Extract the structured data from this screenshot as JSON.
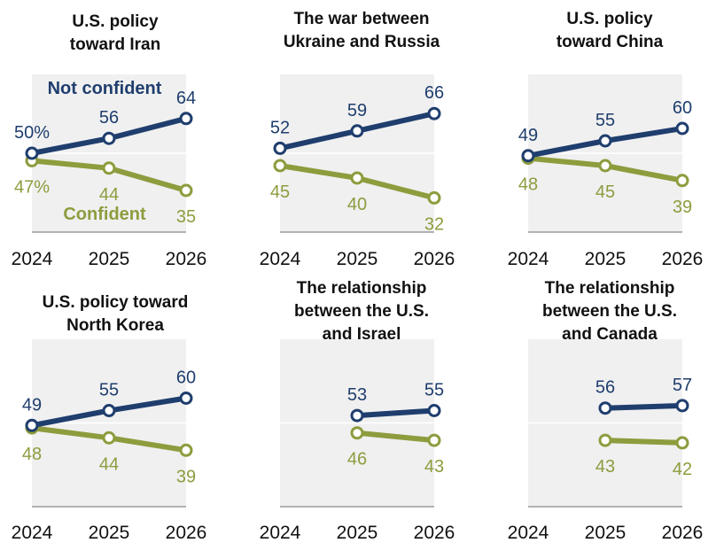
{
  "colors": {
    "not_confident": "#1f3e6e",
    "confident": "#8e9c3e",
    "panel_bg": "#f0f0f0",
    "gridline": "#ffffff"
  },
  "legend": {
    "not_confident": "Not confident",
    "confident": "Confident"
  },
  "chart_data": [
    {
      "type": "line",
      "title_lines": [
        "U.S. policy",
        "toward Iran"
      ],
      "x": [
        "2024",
        "2025",
        "2026"
      ],
      "ylim": [
        0,
        100
      ],
      "series": [
        {
          "name": "Not confident",
          "values": [
            50,
            56,
            64
          ],
          "labels": [
            "50%",
            "56",
            "64"
          ]
        },
        {
          "name": "Confident",
          "values": [
            47,
            44,
            35
          ],
          "labels": [
            "47%",
            "44",
            "35"
          ]
        }
      ]
    },
    {
      "type": "line",
      "title_lines": [
        "The war between",
        "Ukraine and Russia"
      ],
      "x": [
        "2024",
        "2025",
        "2026"
      ],
      "ylim": [
        0,
        100
      ],
      "series": [
        {
          "name": "Not confident",
          "values": [
            52,
            59,
            66
          ],
          "labels": [
            "52",
            "59",
            "66"
          ]
        },
        {
          "name": "Confident",
          "values": [
            45,
            40,
            32
          ],
          "labels": [
            "45",
            "40",
            "32"
          ]
        }
      ]
    },
    {
      "type": "line",
      "title_lines": [
        "U.S. policy",
        "toward China"
      ],
      "x": [
        "2024",
        "2025",
        "2026"
      ],
      "ylim": [
        0,
        100
      ],
      "series": [
        {
          "name": "Not confident",
          "values": [
            49,
            55,
            60
          ],
          "labels": [
            "49",
            "55",
            "60"
          ]
        },
        {
          "name": "Confident",
          "values": [
            48,
            45,
            39
          ],
          "labels": [
            "48",
            "45",
            "39"
          ]
        }
      ]
    },
    {
      "type": "line",
      "title_lines": [
        "U.S. policy toward",
        "North Korea"
      ],
      "x": [
        "2024",
        "2025",
        "2026"
      ],
      "ylim": [
        0,
        100
      ],
      "series": [
        {
          "name": "Not confident",
          "values": [
            49,
            55,
            60
          ],
          "labels": [
            "49",
            "55",
            "60"
          ]
        },
        {
          "name": "Confident",
          "values": [
            48,
            44,
            39
          ],
          "labels": [
            "48",
            "44",
            "39"
          ]
        }
      ]
    },
    {
      "type": "line",
      "title_lines": [
        "The relationship",
        "between the U.S.",
        "and Israel"
      ],
      "x": [
        "2024",
        "2025",
        "2026"
      ],
      "ylim": [
        0,
        100
      ],
      "series": [
        {
          "name": "Not confident",
          "values": [
            null,
            53,
            55
          ],
          "labels": [
            "",
            "53",
            "55"
          ]
        },
        {
          "name": "Confident",
          "values": [
            null,
            46,
            43
          ],
          "labels": [
            "",
            "46",
            "43"
          ]
        }
      ]
    },
    {
      "type": "line",
      "title_lines": [
        "The relationship",
        "between the U.S.",
        "and Canada"
      ],
      "x": [
        "2024",
        "2025",
        "2026"
      ],
      "ylim": [
        0,
        100
      ],
      "series": [
        {
          "name": "Not confident",
          "values": [
            null,
            56,
            57
          ],
          "labels": [
            "",
            "56",
            "57"
          ]
        },
        {
          "name": "Confident",
          "values": [
            null,
            43,
            42
          ],
          "labels": [
            "",
            "43",
            "42"
          ]
        }
      ]
    }
  ]
}
